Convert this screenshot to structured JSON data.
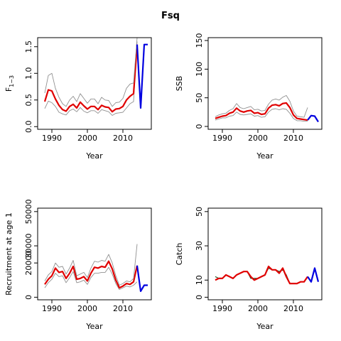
{
  "title": "Fsq",
  "colors": {
    "estimate": "#e00000",
    "interval": "#909090",
    "projection": "#0000e0",
    "axis": "#000000"
  },
  "chart_data": [
    {
      "type": "line",
      "ylabel": "F1-3",
      "ylabel_main": "F",
      "ylabel_sub": "1−3",
      "xlabel": "Year",
      "xlim": [
        1986,
        2018
      ],
      "ylim": [
        -0.05,
        1.67
      ],
      "xticks": [
        1990,
        2000,
        2010
      ],
      "yticks": [
        0.0,
        0.5,
        1.0,
        1.5
      ],
      "ytick_labels": [
        "0.0",
        "0.5",
        "1.0",
        "1.5"
      ],
      "series": [
        {
          "role": "lower",
          "x": [
            1988,
            1989,
            1990,
            1991,
            1992,
            1993,
            1994,
            1995,
            1996,
            1997,
            1998,
            1999,
            2000,
            2001,
            2002,
            2003,
            2004,
            2005,
            2006,
            2007,
            2008,
            2009,
            2010,
            2011,
            2012,
            2013,
            2014
          ],
          "values": [
            0.34,
            0.48,
            0.45,
            0.38,
            0.27,
            0.24,
            0.22,
            0.3,
            0.33,
            0.28,
            0.36,
            0.29,
            0.26,
            0.3,
            0.3,
            0.25,
            0.32,
            0.3,
            0.28,
            0.21,
            0.25,
            0.26,
            0.27,
            0.35,
            0.43,
            0.47,
            1.6
          ]
        },
        {
          "role": "estimate",
          "x": [
            1988,
            1989,
            1990,
            1991,
            1992,
            1993,
            1994,
            1995,
            1996,
            1997,
            1998,
            1999,
            2000,
            2001,
            2002,
            2003,
            2004,
            2005,
            2006,
            2007,
            2008,
            2009,
            2010,
            2011,
            2012,
            2013,
            2014
          ],
          "values": [
            0.47,
            0.69,
            0.67,
            0.52,
            0.4,
            0.32,
            0.29,
            0.38,
            0.42,
            0.35,
            0.46,
            0.39,
            0.33,
            0.38,
            0.38,
            0.32,
            0.4,
            0.37,
            0.36,
            0.28,
            0.33,
            0.34,
            0.38,
            0.5,
            0.57,
            0.62,
            1.54
          ]
        },
        {
          "role": "upper",
          "x": [
            1988,
            1989,
            1990,
            1991,
            1992,
            1993,
            1994,
            1995,
            1996,
            1997,
            1998,
            1999,
            2000,
            2001,
            2002,
            2003,
            2004,
            2005,
            2006,
            2007,
            2008,
            2009,
            2010,
            2011,
            2012,
            2013,
            2014
          ],
          "values": [
            0.63,
            0.96,
            1.0,
            0.72,
            0.55,
            0.43,
            0.38,
            0.5,
            0.57,
            0.47,
            0.62,
            0.53,
            0.44,
            0.52,
            0.52,
            0.43,
            0.55,
            0.5,
            0.49,
            0.38,
            0.45,
            0.46,
            0.53,
            0.72,
            0.8,
            0.82,
            1.67
          ]
        },
        {
          "role": "projection",
          "x": [
            2014,
            2015,
            2016,
            2017
          ],
          "values": [
            1.54,
            0.35,
            1.54,
            1.54
          ]
        }
      ]
    },
    {
      "type": "line",
      "ylabel": "SSB",
      "xlabel": "Year",
      "xlim": [
        1986,
        2018
      ],
      "ylim": [
        -5,
        155
      ],
      "xticks": [
        1990,
        2000,
        2010
      ],
      "yticks": [
        0,
        50,
        100,
        150
      ],
      "ytick_labels": [
        "0",
        "50",
        "100",
        "150"
      ],
      "series": [
        {
          "role": "lower",
          "x": [
            1988,
            1989,
            1990,
            1991,
            1992,
            1993,
            1994,
            1995,
            1996,
            1997,
            1998,
            1999,
            2000,
            2001,
            2002,
            2003,
            2004,
            2005,
            2006,
            2007,
            2008,
            2009,
            2010,
            2011,
            2012,
            2013,
            2014
          ],
          "values": [
            11,
            13,
            15,
            15,
            18,
            19,
            25,
            21,
            20,
            21,
            22,
            18,
            19,
            16,
            17,
            25,
            30,
            31,
            29,
            31,
            30,
            23,
            14,
            10,
            10,
            9,
            9
          ]
        },
        {
          "role": "estimate",
          "x": [
            1988,
            1989,
            1990,
            1991,
            1992,
            1993,
            1994,
            1995,
            1996,
            1997,
            1998,
            1999,
            2000,
            2001,
            2002,
            2003,
            2004,
            2005,
            2006,
            2007,
            2008,
            2009,
            2010,
            2011,
            2012,
            2013,
            2014
          ],
          "values": [
            14,
            16,
            18,
            19,
            23,
            25,
            32,
            27,
            25,
            27,
            28,
            23,
            24,
            21,
            22,
            32,
            37,
            38,
            36,
            40,
            41,
            33,
            20,
            14,
            13,
            12,
            11
          ]
        },
        {
          "role": "upper",
          "x": [
            1988,
            1989,
            1990,
            1991,
            1992,
            1993,
            1994,
            1995,
            1996,
            1997,
            1998,
            1999,
            2000,
            2001,
            2002,
            2003,
            2004,
            2005,
            2006,
            2007,
            2008,
            2009,
            2010,
            2011,
            2012,
            2013,
            2014
          ],
          "values": [
            17,
            20,
            22,
            23,
            28,
            31,
            40,
            33,
            31,
            33,
            35,
            29,
            30,
            27,
            28,
            39,
            46,
            48,
            46,
            51,
            54,
            44,
            27,
            18,
            17,
            16,
            33
          ]
        },
        {
          "role": "projection",
          "x": [
            2014,
            2015,
            2016,
            2017
          ],
          "values": [
            11,
            19,
            18,
            8
          ]
        }
      ]
    },
    {
      "type": "line",
      "ylabel": "Recruitment at age 1",
      "xlabel": "Year",
      "xlim": [
        1986,
        2018
      ],
      "ylim": [
        -1500,
        52000
      ],
      "xticks": [
        1990,
        2000,
        2010
      ],
      "yticks": [
        0,
        20000,
        30000,
        50000
      ],
      "ytick_labels": [
        "0",
        "20000",
        "30000",
        "50000"
      ],
      "series": [
        {
          "role": "lower",
          "x": [
            1988,
            1989,
            1990,
            1991,
            1992,
            1993,
            1994,
            1995,
            1996,
            1997,
            1998,
            1999,
            2000,
            2001,
            2002,
            2003,
            2004,
            2005,
            2006,
            2007,
            2008,
            2009,
            2010,
            2011,
            2012,
            2013,
            2014
          ],
          "values": [
            5500,
            8500,
            10500,
            14000,
            12000,
            12500,
            8500,
            11500,
            15000,
            8500,
            9000,
            10000,
            7500,
            11500,
            14000,
            14000,
            14500,
            14500,
            17500,
            13500,
            8000,
            4500,
            5500,
            6500,
            6000,
            7000,
            9000
          ]
        },
        {
          "role": "estimate",
          "x": [
            1988,
            1989,
            1990,
            1991,
            1992,
            1993,
            1994,
            1995,
            1996,
            1997,
            1998,
            1999,
            2000,
            2001,
            2002,
            2003,
            2004,
            2005,
            2006,
            2007,
            2008,
            2009,
            2010,
            2011,
            2012,
            2013,
            2014
          ],
          "values": [
            7500,
            10500,
            12500,
            17000,
            14500,
            15000,
            11000,
            14000,
            18000,
            10500,
            11000,
            12000,
            9500,
            14000,
            17500,
            17000,
            18000,
            17500,
            21000,
            16500,
            10000,
            5500,
            6500,
            8000,
            7500,
            9000,
            18500
          ]
        },
        {
          "role": "upper",
          "x": [
            1988,
            1989,
            1990,
            1991,
            1992,
            1993,
            1994,
            1995,
            1996,
            1997,
            1998,
            1999,
            2000,
            2001,
            2002,
            2003,
            2004,
            2005,
            2006,
            2007,
            2008,
            2009,
            2010,
            2011,
            2012,
            2013,
            2014
          ],
          "values": [
            9500,
            13000,
            15000,
            20000,
            17500,
            18000,
            13500,
            17000,
            21500,
            12500,
            13500,
            14500,
            11500,
            17000,
            21000,
            20500,
            21500,
            21000,
            25000,
            20000,
            12500,
            7000,
            8000,
            9500,
            9000,
            11000,
            31000
          ]
        },
        {
          "role": "projection",
          "x": [
            2014,
            2015,
            2016,
            2017
          ],
          "values": [
            18500,
            3500,
            7000,
            7000
          ]
        }
      ]
    },
    {
      "type": "line",
      "ylabel": "Catch",
      "xlabel": "Year",
      "xlim": [
        1986,
        2018
      ],
      "ylim": [
        -1.5,
        52
      ],
      "xticks": [
        1990,
        2000,
        2010
      ],
      "yticks": [
        0,
        10,
        30,
        50
      ],
      "ytick_labels": [
        "0",
        "10",
        "30",
        "50"
      ],
      "series": [
        {
          "role": "observed",
          "x": [
            1988,
            1989,
            1990,
            1991,
            1992,
            1993,
            1994,
            1995,
            1996,
            1997,
            1998,
            1999,
            2000,
            2001,
            2002,
            2003,
            2004,
            2005,
            2006,
            2007,
            2008,
            2009,
            2010,
            2011,
            2012,
            2013
          ],
          "values": [
            12,
            11,
            11,
            13,
            12,
            11,
            13,
            14,
            15,
            15,
            11,
            11,
            11,
            12,
            13,
            17,
            16,
            16,
            15,
            16,
            13,
            8,
            8,
            8,
            9,
            9
          ]
        },
        {
          "role": "estimate",
          "x": [
            1988,
            1989,
            1990,
            1991,
            1992,
            1993,
            1994,
            1995,
            1996,
            1997,
            1998,
            1999,
            2000,
            2001,
            2002,
            2003,
            2004,
            2005,
            2006,
            2007,
            2008,
            2009,
            2010,
            2011,
            2012,
            2013,
            2014
          ],
          "values": [
            10,
            11,
            11,
            13,
            12,
            11,
            13,
            14,
            15,
            15,
            12,
            10,
            11,
            12,
            13,
            18,
            16,
            16,
            14,
            17,
            12,
            8,
            8,
            8,
            9,
            9,
            12
          ]
        },
        {
          "role": "projection",
          "x": [
            2014,
            2015,
            2016,
            2017
          ],
          "values": [
            12,
            9,
            17,
            9
          ]
        }
      ]
    }
  ]
}
